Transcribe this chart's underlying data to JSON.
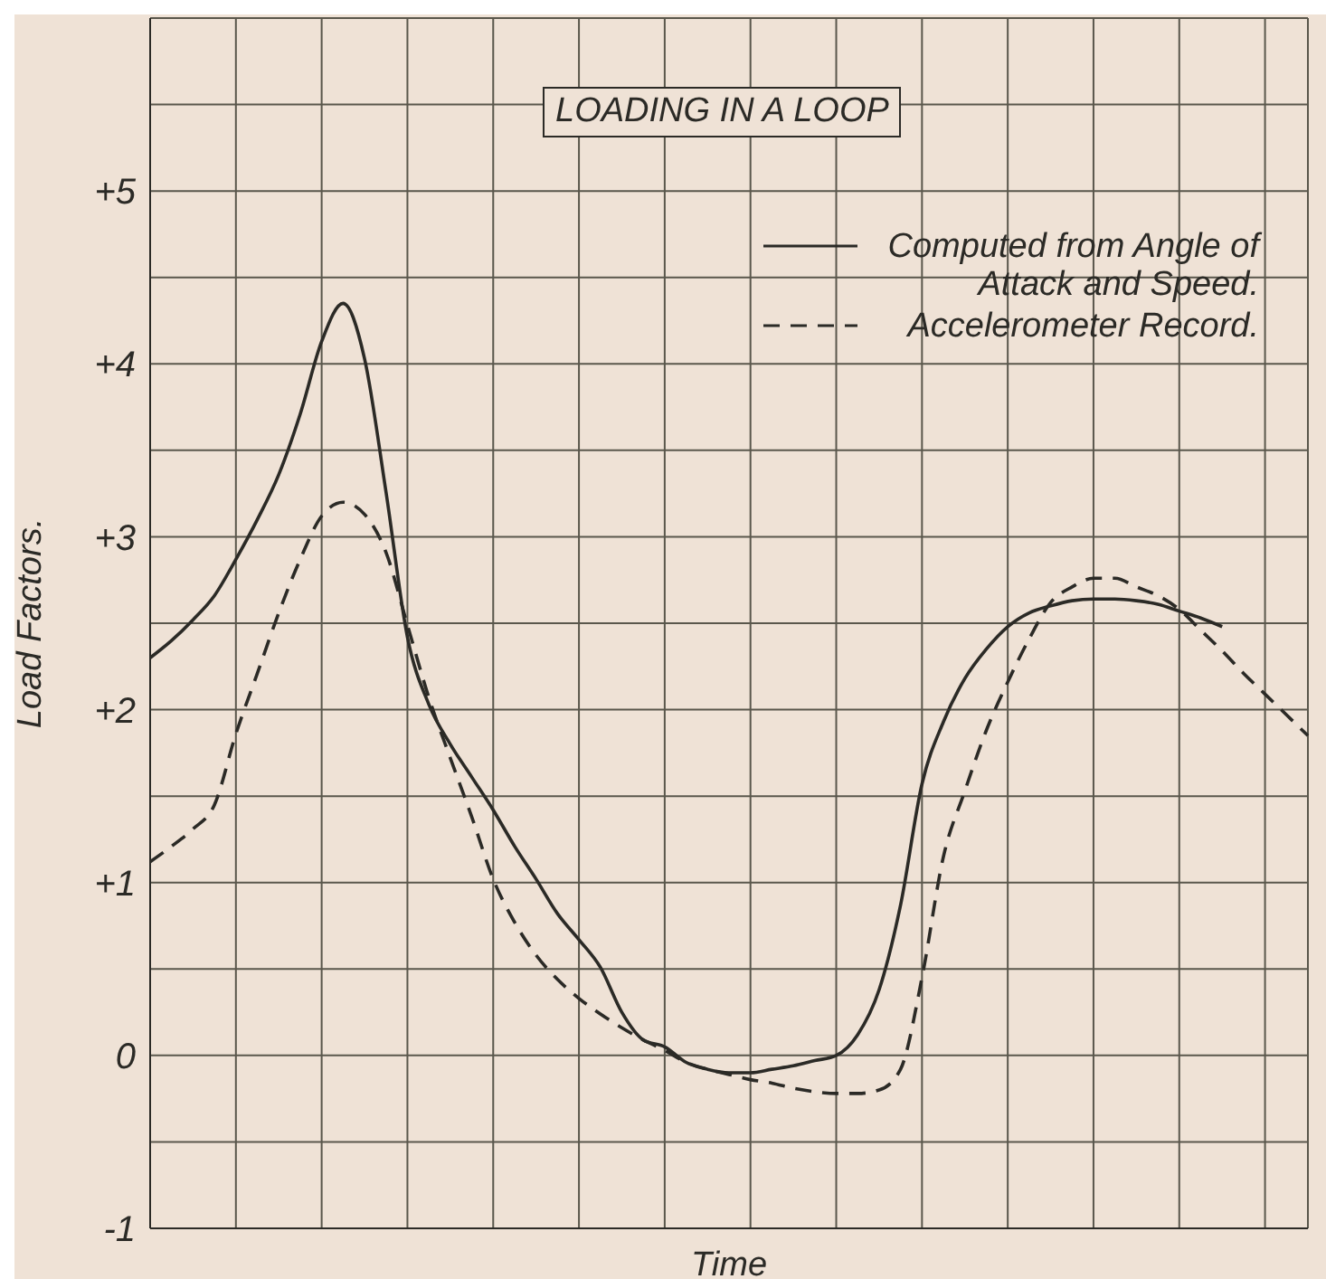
{
  "chart_data": {
    "type": "line",
    "title": "LOADING IN A LOOP",
    "xlabel": "Time",
    "ylabel": "Load Factors.",
    "categories": [
      null,
      null,
      null,
      null,
      null,
      null,
      null,
      null,
      null,
      null,
      null,
      null,
      null,
      null,
      null,
      null,
      null,
      null,
      null,
      null,
      null,
      null,
      null,
      null,
      null,
      null,
      null,
      null,
      null,
      null,
      null,
      null,
      null,
      null,
      null,
      null,
      null,
      null,
      null,
      null,
      null,
      null,
      null,
      null,
      null,
      null,
      null,
      null,
      null,
      null,
      null,
      null,
      null,
      null,
      null
    ],
    "series": [
      {
        "name": "Computed from Angle of Attack and Speed.",
        "color": "#2b2a26",
        "line_style": "solid",
        "values": [
          2.3,
          2.4,
          2.52,
          2.66,
          2.87,
          3.1,
          3.36,
          3.71,
          4.13,
          4.35,
          4.03,
          3.26,
          2.42,
          2.03,
          1.8,
          1.61,
          1.42,
          1.21,
          1.02,
          0.82,
          0.67,
          0.51,
          0.25,
          0.09,
          0.05,
          -0.04,
          -0.08,
          -0.1,
          -0.1,
          -0.08,
          -0.06,
          -0.03,
          0.0,
          0.12,
          0.38,
          0.87,
          1.57,
          1.93,
          2.18,
          2.35,
          2.48,
          2.56,
          2.6,
          2.63,
          2.64,
          2.64,
          2.63,
          2.61,
          2.57,
          2.53,
          2.48,
          null,
          null,
          null,
          null
        ]
      },
      {
        "name": "Accelerometer Record.",
        "color": "#2b2a26",
        "line_style": "dashed",
        "values": [
          1.12,
          1.21,
          1.31,
          1.45,
          1.86,
          2.21,
          2.56,
          2.87,
          3.12,
          3.2,
          3.13,
          2.91,
          2.49,
          2.07,
          1.72,
          1.38,
          1.02,
          0.77,
          0.58,
          0.44,
          0.33,
          0.24,
          0.16,
          0.09,
          0.03,
          -0.04,
          -0.08,
          -0.11,
          -0.14,
          -0.16,
          -0.19,
          -0.21,
          -0.22,
          -0.22,
          -0.2,
          -0.08,
          0.45,
          1.15,
          1.53,
          1.88,
          2.16,
          2.41,
          2.62,
          2.71,
          2.76,
          2.76,
          2.71,
          2.66,
          2.58,
          2.46,
          2.34,
          2.21,
          2.09,
          1.97,
          1.85
        ]
      }
    ],
    "ylim": [
      -1,
      6
    ],
    "yticks": [
      {
        "value": -1,
        "label": "-1"
      },
      {
        "value": -0.5,
        "label": null
      },
      0,
      {
        "value": 0.5,
        "label": null
      },
      {
        "value": 1,
        "label": "+1"
      },
      {
        "value": 1.5,
        "label": null
      },
      {
        "value": 2,
        "label": "+2"
      },
      {
        "value": 2.5,
        "label": null
      },
      {
        "value": 3,
        "label": "+3"
      },
      {
        "value": 3.5,
        "label": null
      },
      {
        "value": 4,
        "label": "+4"
      },
      {
        "value": 4.5,
        "label": null
      },
      {
        "value": 5,
        "label": "+5"
      },
      {
        "value": 5.5,
        "label": null
      },
      {
        "value": 6,
        "label": null
      }
    ],
    "tick_labels": "y",
    "grid": true,
    "legend": "top right",
    "marker": "none"
  }
}
